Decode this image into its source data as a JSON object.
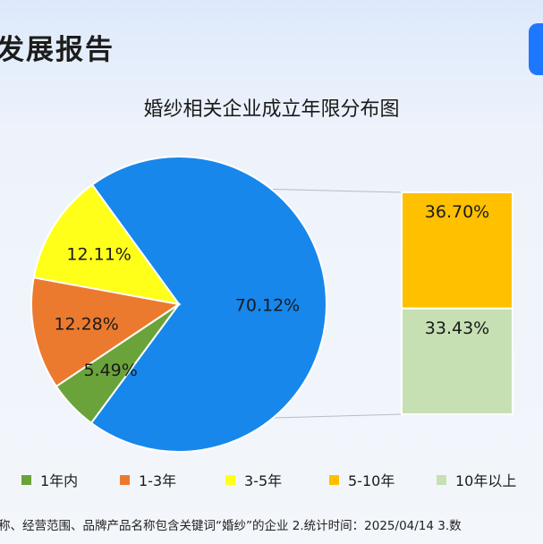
{
  "header": {
    "title_fragment": "发展报告"
  },
  "chart_data": {
    "type": "pie",
    "title": "婚纱相关企业成立年限分布图",
    "slices": [
      {
        "label": "5-10年 + 10年以上",
        "value": 70.12,
        "value_label": "70.12%",
        "color": "#1787eb"
      },
      {
        "label": "1年内",
        "value": 5.49,
        "value_label": "5.49%",
        "color": "#6aa33a"
      },
      {
        "label": "1-3年",
        "value": 12.28,
        "value_label": "12.28%",
        "color": "#ec7a2e"
      },
      {
        "label": "3-5年",
        "value": 12.11,
        "value_label": "12.11%",
        "color": "#ffff1a"
      }
    ],
    "breakdown": {
      "type": "stacked-bar",
      "segments": [
        {
          "label": "5-10年",
          "value": 36.7,
          "value_label": "36.70%",
          "color": "#ffc000"
        },
        {
          "label": "10年以上",
          "value": 33.43,
          "value_label": "33.43%",
          "color": "#c6e0b4"
        }
      ]
    },
    "legend": [
      {
        "label": "1年内",
        "color": "#6aa33a"
      },
      {
        "label": "1-3年",
        "color": "#ec7a2e"
      },
      {
        "label": "3-5年",
        "color": "#ffff1a"
      },
      {
        "label": "5-10年",
        "color": "#ffc000"
      },
      {
        "label": "10年以上",
        "color": "#c6e0b4"
      }
    ],
    "legend_position": "bottom"
  },
  "footnote": "称、经营范围、品牌产品名称包含关键词“婚纱”的企业   2.统计时间：2025/04/14   3.数"
}
